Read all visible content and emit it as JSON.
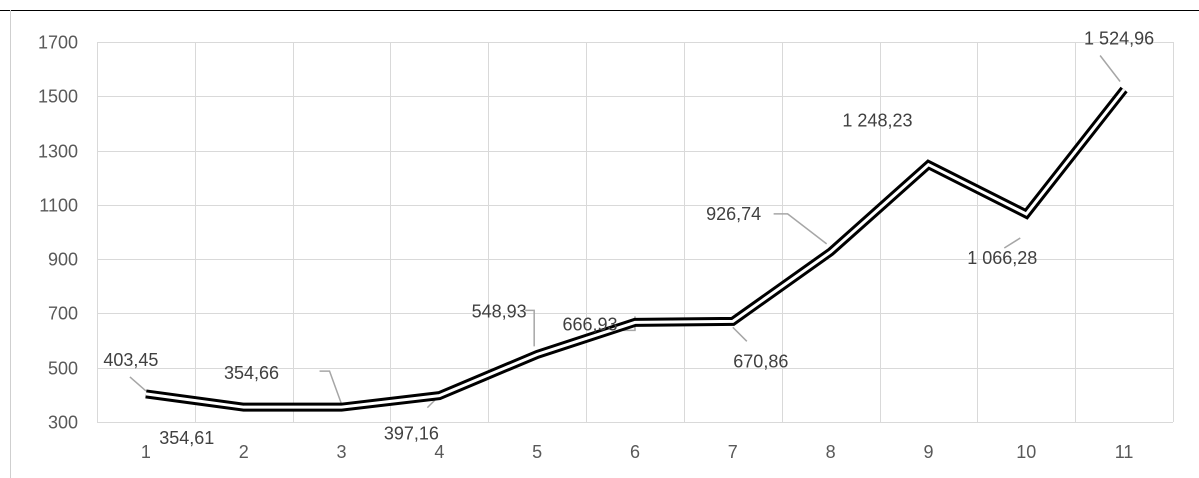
{
  "chart_data": {
    "type": "line",
    "title": "",
    "xlabel": "",
    "ylabel": "",
    "categories": [
      "1",
      "2",
      "3",
      "4",
      "5",
      "6",
      "7",
      "8",
      "9",
      "10",
      "11"
    ],
    "series": [
      {
        "values": [
          403.45,
          354.61,
          354.66,
          397.16,
          548.93,
          666.93,
          670.86,
          926.74,
          1248.23,
          1066.28,
          1524.96
        ]
      }
    ],
    "data_labels": [
      "403,45",
      "354,61",
      "354,66",
      "397,16",
      "548,93",
      "666,93",
      "670,86",
      "926,74",
      "1 248,23",
      "1 066,28",
      "1 524,96"
    ],
    "y_ticks": [
      300,
      500,
      700,
      900,
      1100,
      1300,
      1500,
      1700
    ],
    "y_tick_labels": [
      "300",
      "500",
      "700",
      "900",
      "1100",
      "1300",
      "1500",
      "1700"
    ],
    "ylim": [
      300,
      1700
    ],
    "grid": true,
    "legend": "none",
    "line_color": "#000000",
    "grid_color": "#d9d9d9",
    "leader_color": "#a6a6a6"
  }
}
